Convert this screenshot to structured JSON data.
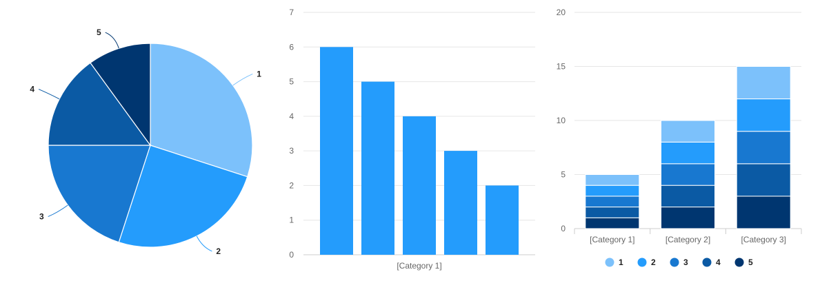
{
  "colors": {
    "series_1": "#7cc1fb",
    "series_2": "#249cfc",
    "series_3": "#1878d0",
    "series_4": "#0b5aa4",
    "series_5": "#003670",
    "bar": "#249cfc"
  },
  "chart_data": [
    {
      "type": "pie",
      "slices": [
        {
          "label": "1",
          "value": 30
        },
        {
          "label": "2",
          "value": 25
        },
        {
          "label": "3",
          "value": 20
        },
        {
          "label": "4",
          "value": 15
        },
        {
          "label": "5",
          "value": 10
        }
      ]
    },
    {
      "type": "bar",
      "categories": [
        "[Category 1]"
      ],
      "series": [
        {
          "values": [
            6
          ]
        },
        {
          "values": [
            5
          ]
        },
        {
          "values": [
            4
          ]
        },
        {
          "values": [
            3
          ]
        },
        {
          "values": [
            2
          ]
        }
      ],
      "ylim": [
        0,
        7
      ],
      "yticks": [
        "0",
        "1",
        "2",
        "3",
        "4",
        "5",
        "6",
        "7"
      ],
      "grid": true
    },
    {
      "type": "bar",
      "stacked": true,
      "categories": [
        "[Category 1]",
        "[Category 2]",
        "[Category 3]"
      ],
      "series": [
        {
          "name": "5",
          "values": [
            1,
            2,
            3
          ]
        },
        {
          "name": "4",
          "values": [
            1,
            2,
            3
          ]
        },
        {
          "name": "3",
          "values": [
            1,
            2,
            3
          ]
        },
        {
          "name": "2",
          "values": [
            1,
            2,
            3
          ]
        },
        {
          "name": "1",
          "values": [
            1,
            2,
            3
          ]
        }
      ],
      "ylim": [
        0,
        20
      ],
      "yticks": [
        "0",
        "5",
        "10",
        "15",
        "20"
      ],
      "grid": true,
      "legend": {
        "position": "bottom",
        "items": [
          "1",
          "2",
          "3",
          "4",
          "5"
        ]
      }
    }
  ]
}
